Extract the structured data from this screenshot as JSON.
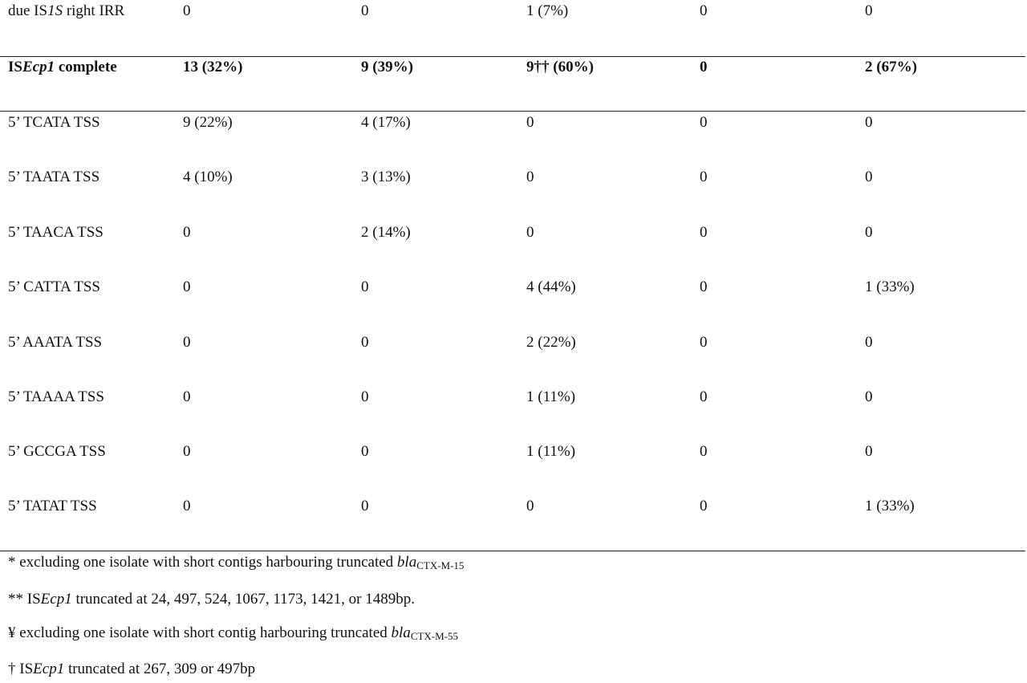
{
  "table": {
    "rows": [
      {
        "label": [
          "due IS",
          "1S",
          " right IRR"
        ],
        "cells": [
          "0",
          "0",
          "1 (7%)",
          "0",
          "0"
        ]
      },
      {
        "label": [
          "IS",
          "Ecp1",
          " complete"
        ],
        "cells": [
          "13 (32%)",
          "9 (39%)",
          "9†† (60%)",
          "0",
          "2 (67%)"
        ]
      },
      {
        "label": "5’ TCATA TSS",
        "cells": [
          "9 (22%)",
          "4 (17%)",
          "0",
          "0",
          "0"
        ]
      },
      {
        "label": "5’ TAATA TSS",
        "cells": [
          "4 (10%)",
          "3 (13%)",
          "0",
          "0",
          "0"
        ]
      },
      {
        "label": "5’ TAACA TSS",
        "cells": [
          "0",
          "2 (14%)",
          "0",
          "0",
          "0"
        ]
      },
      {
        "label": "5’ CATTA TSS",
        "cells": [
          "0",
          "0",
          "4 (44%)",
          "0",
          "1 (33%)"
        ]
      },
      {
        "label": "5’ AAATA TSS",
        "cells": [
          "0",
          "0",
          "2 (22%)",
          "0",
          "0"
        ]
      },
      {
        "label": "5’ TAAAA TSS",
        "cells": [
          "0",
          "0",
          "1 (11%)",
          "0",
          "0"
        ]
      },
      {
        "label": "5’ GCCGA TSS",
        "cells": [
          "0",
          "0",
          "1 (11%)",
          "0",
          "0"
        ]
      },
      {
        "label": "5’ TATAT TSS",
        "cells": [
          "0",
          "0",
          "0",
          "0",
          "1 (33%)"
        ]
      }
    ]
  },
  "footnotes": [
    [
      "* excluding one isolate with short contigs harbouring truncated ",
      "bla",
      "CTX-M-15"
    ],
    [
      "** IS",
      "Ecp1",
      " truncated at 24, 497, 524, 1067, 1173, 1421, or 1489bp."
    ],
    [
      "¥ excluding one isolate with short contig harbouring truncated ",
      "bla",
      "CTX-M-55"
    ],
    [
      "† IS",
      "Ecp1",
      " truncated at 267, 309 or 497bp"
    ]
  ]
}
